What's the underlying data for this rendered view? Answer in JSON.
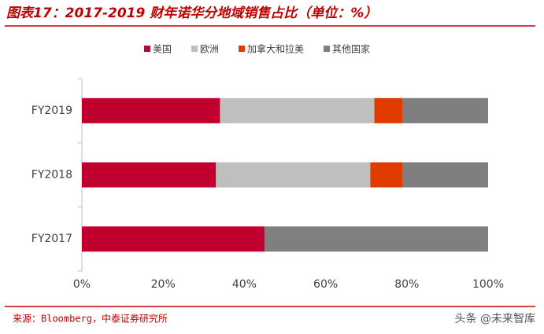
{
  "chart_data": {
    "type": "stacked_barh",
    "title": "图表17：2017-2019 财年诺华分地域销售占比（单位：%）",
    "categories": [
      "FY2019",
      "FY2018",
      "FY2017"
    ],
    "series": [
      {
        "name": "美国",
        "color": "#c0002f",
        "values": [
          34,
          33,
          45
        ]
      },
      {
        "name": "欧洲",
        "color": "#bfbfbf",
        "values": [
          38,
          38,
          0
        ]
      },
      {
        "name": "加拿大和拉美",
        "color": "#e03c00",
        "values": [
          7,
          8,
          0
        ]
      },
      {
        "name": "其他国家",
        "color": "#7f7f7f",
        "values": [
          21,
          21,
          55
        ]
      }
    ],
    "xlim": [
      0,
      100
    ],
    "xticks": [
      {
        "value": 0,
        "label": "0%"
      },
      {
        "value": 20,
        "label": "20%"
      },
      {
        "value": 40,
        "label": "40%"
      },
      {
        "value": 60,
        "label": "60%"
      },
      {
        "value": 80,
        "label": "80%"
      },
      {
        "value": 100,
        "label": "100%"
      }
    ],
    "source": "来源：Bloomberg，中泰证券研究所",
    "watermark": "头条 @未来智库"
  }
}
